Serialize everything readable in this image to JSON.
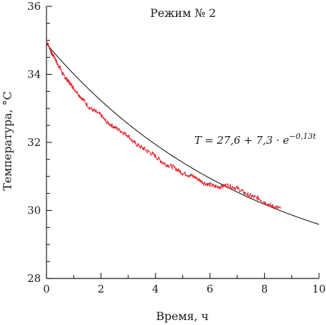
{
  "chart_data": {
    "type": "line",
    "title": "Режим № 2",
    "xlabel": "Время, ч",
    "ylabel": "Температура, °C",
    "xlim": [
      0,
      10
    ],
    "ylim": [
      28,
      36
    ],
    "x_ticks": [
      0,
      2,
      4,
      6,
      8,
      10
    ],
    "x_tick_labels": [
      "0",
      "2",
      "4",
      "6",
      "8",
      "10"
    ],
    "y_ticks": [
      28,
      30,
      32,
      34,
      36
    ],
    "y_tick_labels": [
      "28",
      "30",
      "32",
      "34",
      "36"
    ],
    "grid": false,
    "annotation": "T = 27,6 + 7,3 · e−0,13t",
    "series": [
      {
        "kind": "measured",
        "color": "#e0202a",
        "x": [
          0.0,
          0.1,
          0.2,
          0.3,
          0.4,
          0.5,
          0.6,
          0.7,
          0.8,
          0.9,
          1.0,
          1.2,
          1.4,
          1.6,
          1.8,
          2.0,
          2.2,
          2.4,
          2.6,
          2.8,
          3.0,
          3.2,
          3.4,
          3.6,
          3.8,
          4.0,
          4.2,
          4.4,
          4.6,
          4.8,
          5.0,
          5.2,
          5.4,
          5.6,
          5.8,
          6.0,
          6.2,
          6.4,
          6.6,
          6.8,
          7.0,
          7.2,
          7.4,
          7.6,
          7.8,
          8.0,
          8.2,
          8.4,
          8.6
        ],
        "y": [
          35.0,
          34.8,
          34.6,
          34.5,
          34.3,
          34.2,
          34.0,
          33.9,
          33.8,
          33.7,
          33.6,
          33.4,
          33.2,
          33.0,
          32.9,
          32.8,
          32.6,
          32.5,
          32.4,
          32.3,
          32.2,
          32.0,
          31.9,
          31.8,
          31.7,
          31.6,
          31.45,
          31.35,
          31.3,
          31.2,
          31.1,
          31.05,
          31.0,
          30.9,
          30.8,
          30.75,
          30.7,
          30.7,
          30.75,
          30.7,
          30.65,
          30.55,
          30.45,
          30.4,
          30.35,
          30.25,
          30.15,
          30.1,
          30.05
        ]
      },
      {
        "kind": "fit",
        "color": "#1a1a1a",
        "a": 27.6,
        "b": 7.3,
        "k": 0.13
      }
    ]
  }
}
